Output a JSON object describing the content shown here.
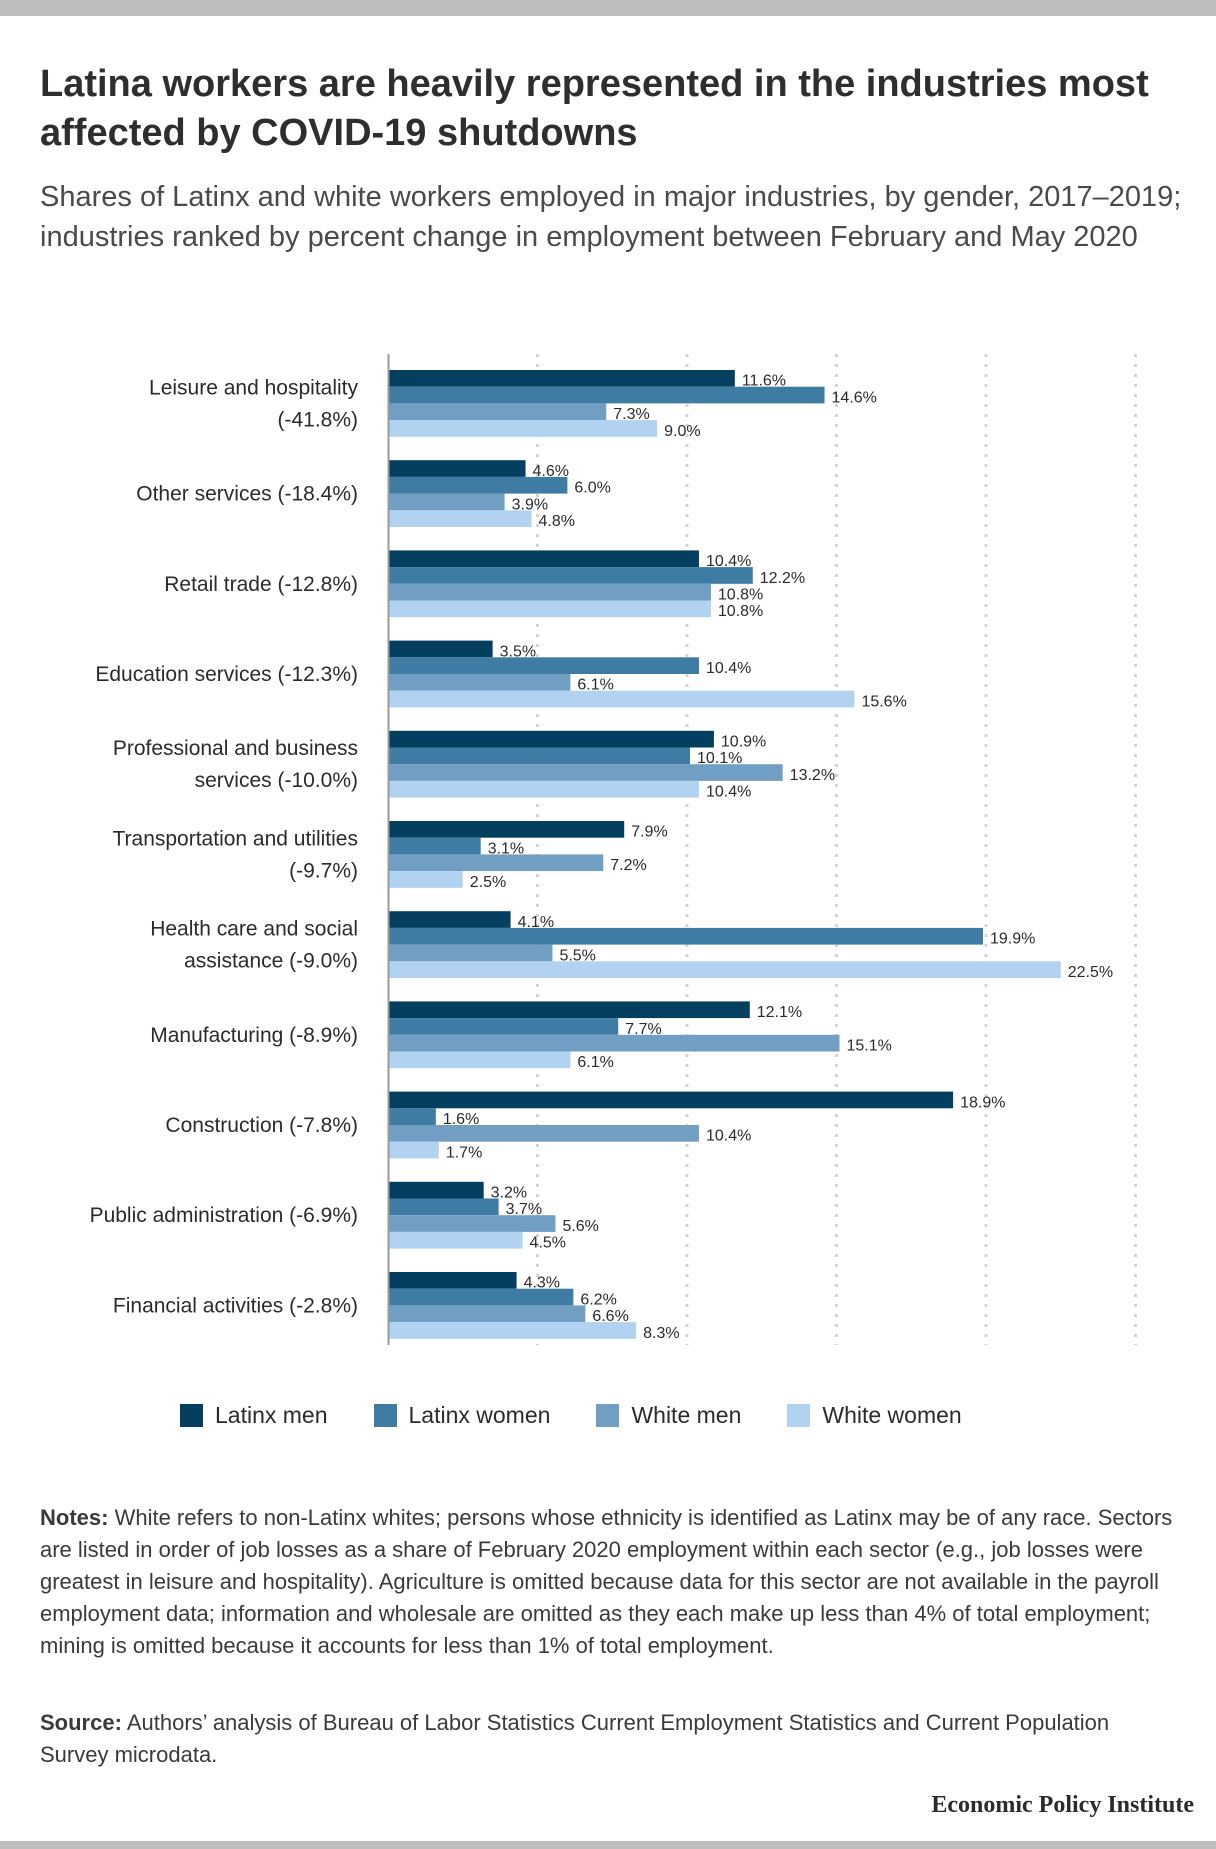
{
  "title": "Latina workers are heavily represented in the industries most affected by COVID-19 shutdowns",
  "subtitle": "Shares of Latinx and white workers employed in major industries, by gender, 2017–2019; industries ranked by percent change in employment between February and May 2020",
  "colors": {
    "latinx_men": "#053f5f",
    "latinx_women": "#3f7ca3",
    "white_men": "#719fc4",
    "white_women": "#b1d3f1",
    "grid": "#d4d4d4",
    "axis": "#9a9a9a"
  },
  "chart_data": {
    "type": "bar",
    "orientation": "horizontal",
    "categories": [
      [
        "Leisure and hospitality",
        "(-41.8%)"
      ],
      [
        "Other services (-18.4%)"
      ],
      [
        "Retail trade (-12.8%)"
      ],
      [
        "Education services (-12.3%)"
      ],
      [
        "Professional and business",
        "services (-10.0%)"
      ],
      [
        "Transportation and utilities",
        "(-9.7%)"
      ],
      [
        "Health care and social",
        "assistance (-9.0%)"
      ],
      [
        "Manufacturing (-8.9%)"
      ],
      [
        "Construction (-7.8%)"
      ],
      [
        "Public administration (-6.9%)"
      ],
      [
        "Financial activities (-2.8%)"
      ]
    ],
    "series": [
      {
        "name": "Latinx men",
        "color": "#053f5f",
        "values": [
          11.6,
          4.6,
          10.4,
          3.5,
          10.9,
          7.9,
          4.1,
          12.1,
          18.9,
          3.2,
          4.3
        ]
      },
      {
        "name": "Latinx women",
        "color": "#3f7ca3",
        "values": [
          14.6,
          6.0,
          12.2,
          10.4,
          10.1,
          3.1,
          19.9,
          7.7,
          1.6,
          3.7,
          6.2
        ]
      },
      {
        "name": "White men",
        "color": "#719fc4",
        "values": [
          7.3,
          3.9,
          10.8,
          6.1,
          13.2,
          7.2,
          5.5,
          15.1,
          10.4,
          5.6,
          6.6
        ]
      },
      {
        "name": "White women",
        "color": "#b1d3f1",
        "values": [
          9.0,
          4.8,
          10.8,
          15.6,
          10.4,
          2.5,
          22.5,
          6.1,
          1.7,
          4.5,
          8.3
        ]
      }
    ],
    "xlim": [
      0,
      25
    ],
    "value_suffix": "%",
    "grid": true,
    "legend_position": "bottom"
  },
  "notes": {
    "label": "Notes:",
    "text": " White refers to non-Latinx whites; persons whose ethnicity is identified as Latinx may be of any race. Sectors are listed in order of job losses as a share of February 2020 employment within each sector (e.g., job losses were greatest in leisure and hospitality). Agriculture is omitted because data for this sector are not available in the payroll employment data; information and wholesale are omitted as they each make up less than 4% of total employment; mining is omitted because it accounts for less than 1% of total employment."
  },
  "source": {
    "label": "Source:",
    "text": " Authors’ analysis of Bureau of Labor Statistics Current Employment Statistics and Current Population Survey microdata."
  },
  "brand": "Economic Policy Institute"
}
